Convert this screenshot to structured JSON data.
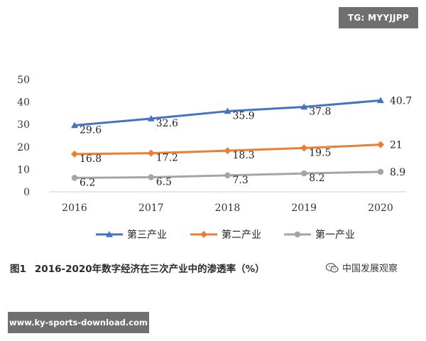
{
  "watermark_top": "TG: MYYJJPP",
  "watermark_bottom": "www.ky-sports-download.com",
  "caption": {
    "figure_no": "图1",
    "title": "2016-2020年数字经济在三次产业中的渗透率（%）"
  },
  "source_mark": "中国发展观察",
  "chart_data": {
    "type": "line",
    "title": "2016-2020年数字经济在三次产业中的渗透率（%）",
    "xlabel": "",
    "ylabel": "",
    "categories": [
      "2016",
      "2017",
      "2018",
      "2019",
      "2020"
    ],
    "ylim": [
      0,
      50
    ],
    "yticks": [
      0,
      10,
      20,
      30,
      40,
      50
    ],
    "grid": false,
    "legend": "bottom",
    "series": [
      {
        "name": "第三产业",
        "values": [
          29.6,
          32.6,
          35.9,
          37.8,
          40.7
        ],
        "labels": [
          "29.6",
          "32.6",
          "35.9",
          "37.8",
          "40.7"
        ],
        "color": "#4472c4",
        "marker": "triangle"
      },
      {
        "name": "第二产业",
        "values": [
          16.8,
          17.2,
          18.3,
          19.5,
          21
        ],
        "labels": [
          "16.8",
          "17.2",
          "18.3",
          "19.5",
          "21"
        ],
        "color": "#ed7d31",
        "marker": "diamond"
      },
      {
        "name": "第一产业",
        "values": [
          6.2,
          6.5,
          7.3,
          8.2,
          8.9
        ],
        "labels": [
          "6.2",
          "6.5",
          "7.3",
          "8.2",
          "8.9"
        ],
        "color": "#a5a5a5",
        "marker": "circle"
      }
    ]
  }
}
